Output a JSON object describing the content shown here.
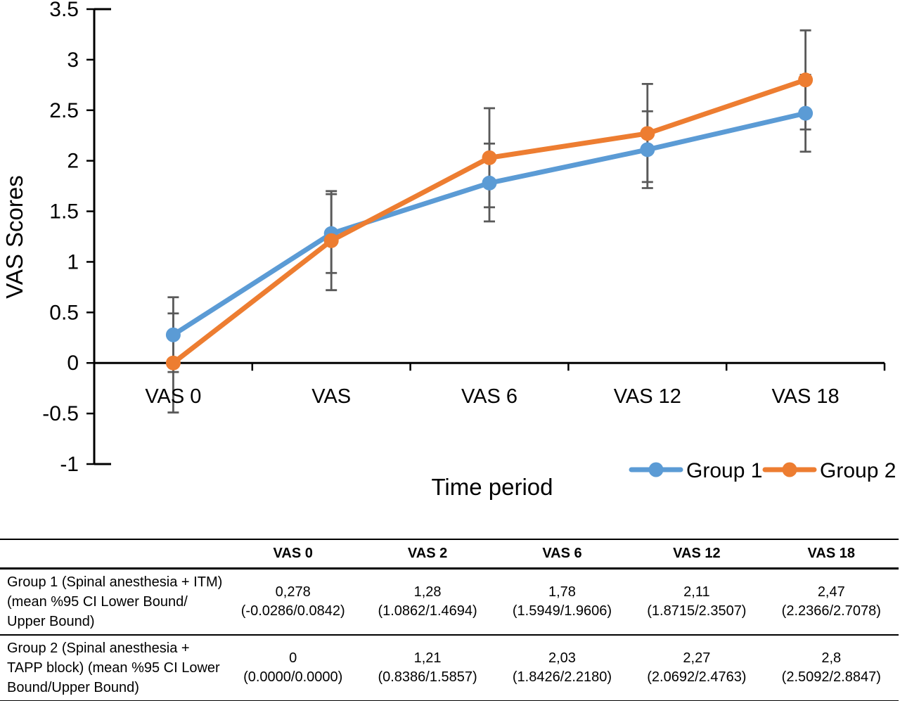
{
  "chart_data": {
    "type": "line",
    "title": "",
    "categories": [
      "VAS 0",
      "VAS",
      "VAS 6",
      "VAS 12",
      "VAS 18"
    ],
    "xlabel": "Time period",
    "ylabel": "VAS Scores",
    "ylim": [
      -1,
      3.5
    ],
    "yticks": [
      3.5,
      3,
      2.5,
      2,
      1.5,
      1,
      0.5,
      0,
      -0.5,
      -1
    ],
    "grid": false,
    "legend_position": "bottom-right",
    "axis_color": "#000000",
    "error_bar_color": "#595959",
    "series": [
      {
        "name": "Group 1",
        "color": "#5B9BD5",
        "values": [
          0.278,
          1.28,
          1.78,
          2.11,
          2.47
        ],
        "error_low": [
          -0.09,
          0.89,
          1.4,
          1.73,
          2.09
        ],
        "error_high": [
          0.65,
          1.67,
          2.17,
          2.49,
          2.85
        ]
      },
      {
        "name": "Group 2",
        "color": "#ED7D31",
        "values": [
          0,
          1.21,
          2.03,
          2.27,
          2.8
        ],
        "error_low": [
          -0.49,
          0.72,
          1.54,
          1.79,
          2.31
        ],
        "error_high": [
          0.49,
          1.7,
          2.52,
          2.76,
          3.29
        ]
      }
    ]
  },
  "table": {
    "columns": [
      "VAS 0",
      "VAS 2",
      "VAS 6",
      "VAS 12",
      "VAS 18"
    ],
    "rows": [
      {
        "label_lines": [
          "Group 1 (Spinal anesthesia + ITM)",
          "(mean %95 CI Lower Bound/",
          "Upper Bound)"
        ],
        "cells": [
          {
            "mean": "0,278",
            "ci": "(-0.0286/0.0842)"
          },
          {
            "mean": "1,28",
            "ci": "(1.0862/1.4694)"
          },
          {
            "mean": "1,78",
            "ci": "(1.5949/1.9606)"
          },
          {
            "mean": "2,11",
            "ci": "(1.8715/2.3507)"
          },
          {
            "mean": "2,47",
            "ci": "(2.2366/2.7078)"
          }
        ]
      },
      {
        "label_lines": [
          "Group 2 (Spinal anesthesia +",
          "TAPP block) (mean %95 CI Lower",
          "Bound/Upper Bound)"
        ],
        "cells": [
          {
            "mean": "0",
            "ci": "(0.0000/0.0000)"
          },
          {
            "mean": "1,21",
            "ci": "(0.8386/1.5857)"
          },
          {
            "mean": "2,03",
            "ci": "(1.8426/2.2180)"
          },
          {
            "mean": "2,27",
            "ci": "(2.0692/2.4763)"
          },
          {
            "mean": "2,8",
            "ci": "(2.5092/2.8847)"
          }
        ]
      }
    ]
  }
}
